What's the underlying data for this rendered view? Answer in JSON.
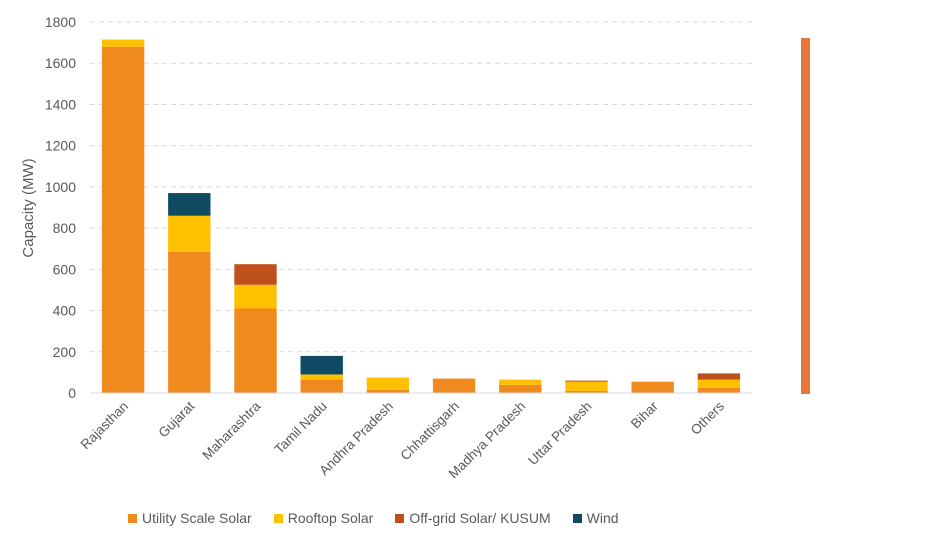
{
  "chart_data": {
    "type": "stacked-bar",
    "ylabel": "Capacity (MW)",
    "ylim": [
      0,
      1800
    ],
    "yticks": [
      0,
      200,
      400,
      600,
      800,
      1000,
      1200,
      1400,
      1600,
      1800
    ],
    "grid": true,
    "legend_position": "bottom",
    "categories": [
      "Rajasthan",
      "Gujarat",
      "Maharashtra",
      "Tamil Nadu",
      "Andhra Pradesh",
      "Chhattisgarh",
      "Madhya Pradesh",
      "Uttar Pradesh",
      "Bihar",
      "Others"
    ],
    "series": [
      {
        "name": "Utility Scale Solar",
        "color": "#F0891E",
        "values": [
          1680,
          685,
          410,
          65,
          15,
          70,
          40,
          10,
          55,
          25
        ]
      },
      {
        "name": "Rooftop Solar",
        "color": "#FFC000",
        "values": [
          35,
          175,
          115,
          25,
          60,
          0,
          25,
          45,
          0,
          40
        ]
      },
      {
        "name": "Off-grid Solar/ KUSUM",
        "color": "#C0501B",
        "values": [
          0,
          0,
          100,
          0,
          0,
          0,
          0,
          5,
          0,
          30
        ]
      },
      {
        "name": "Wind",
        "color": "#0F4C63",
        "values": [
          0,
          110,
          0,
          90,
          0,
          0,
          0,
          0,
          0,
          0
        ]
      }
    ]
  }
}
